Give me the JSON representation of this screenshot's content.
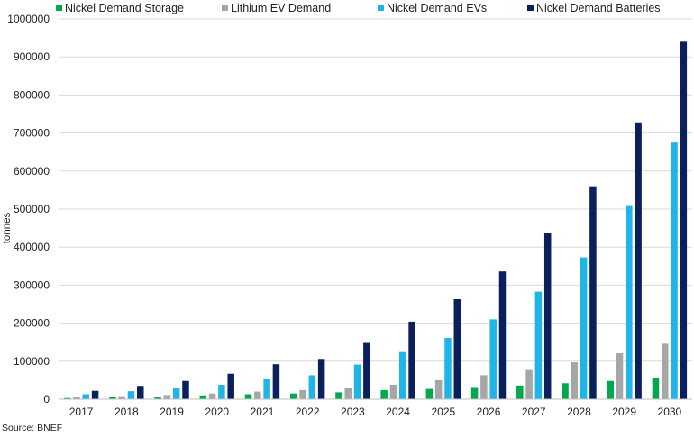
{
  "chart_data": {
    "type": "bar",
    "categories": [
      "2017",
      "2018",
      "2019",
      "2020",
      "2021",
      "2022",
      "2023",
      "2024",
      "2025",
      "2026",
      "2027",
      "2028",
      "2029",
      "2030"
    ],
    "series": [
      {
        "name": "Nickel Demand Storage",
        "color": "#00a84f",
        "values": [
          3000,
          5000,
          7000,
          10000,
          13000,
          15000,
          18000,
          24000,
          27000,
          32000,
          36000,
          42000,
          48000,
          57000
        ]
      },
      {
        "name": "Lithium EV Demand",
        "color": "#a6a6a6",
        "values": [
          5000,
          8000,
          11000,
          15000,
          20000,
          24000,
          30000,
          38000,
          50000,
          63000,
          79000,
          97000,
          121000,
          146000
        ]
      },
      {
        "name": "Nickel Demand EVs",
        "color": "#1fb5e8",
        "values": [
          13000,
          21000,
          29000,
          38000,
          53000,
          63000,
          91000,
          124000,
          161000,
          210000,
          283000,
          373000,
          508000,
          675000
        ]
      },
      {
        "name": "Nickel Demand Batteries",
        "color": "#0b1f5c",
        "values": [
          22000,
          35000,
          48000,
          67000,
          92000,
          106000,
          148000,
          204000,
          263000,
          336000,
          438000,
          560000,
          728000,
          940000
        ]
      }
    ],
    "ylabel": "tonnes",
    "ylim": [
      0,
      1000000
    ],
    "yticks": [
      "0",
      "100000",
      "200000",
      "300000",
      "400000",
      "500000",
      "600000",
      "700000",
      "800000",
      "900000",
      "1000000"
    ],
    "grid": true,
    "legend_position": "top",
    "source": "Source: BNEF"
  }
}
